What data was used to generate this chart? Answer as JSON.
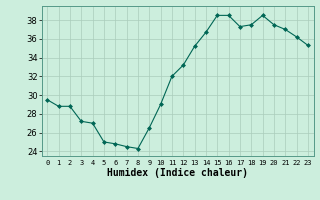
{
  "x": [
    0,
    1,
    2,
    3,
    4,
    5,
    6,
    7,
    8,
    9,
    10,
    11,
    12,
    13,
    14,
    15,
    16,
    17,
    18,
    19,
    20,
    21,
    22,
    23
  ],
  "y": [
    29.5,
    28.8,
    28.8,
    27.2,
    27.0,
    25.0,
    24.8,
    24.5,
    24.3,
    26.5,
    29.0,
    32.0,
    33.2,
    35.2,
    36.7,
    38.5,
    38.5,
    37.3,
    37.5,
    38.5,
    37.5,
    37.0,
    36.2,
    35.3
  ],
  "xlabel": "Humidex (Indice chaleur)",
  "ylim": [
    23.5,
    39.5
  ],
  "xlim": [
    -0.5,
    23.5
  ],
  "yticks": [
    24,
    26,
    28,
    30,
    32,
    34,
    36,
    38
  ],
  "bg_color": "#cceedd",
  "grid_color": "#aaccbb",
  "line_color": "#006655",
  "marker_color": "#006655"
}
